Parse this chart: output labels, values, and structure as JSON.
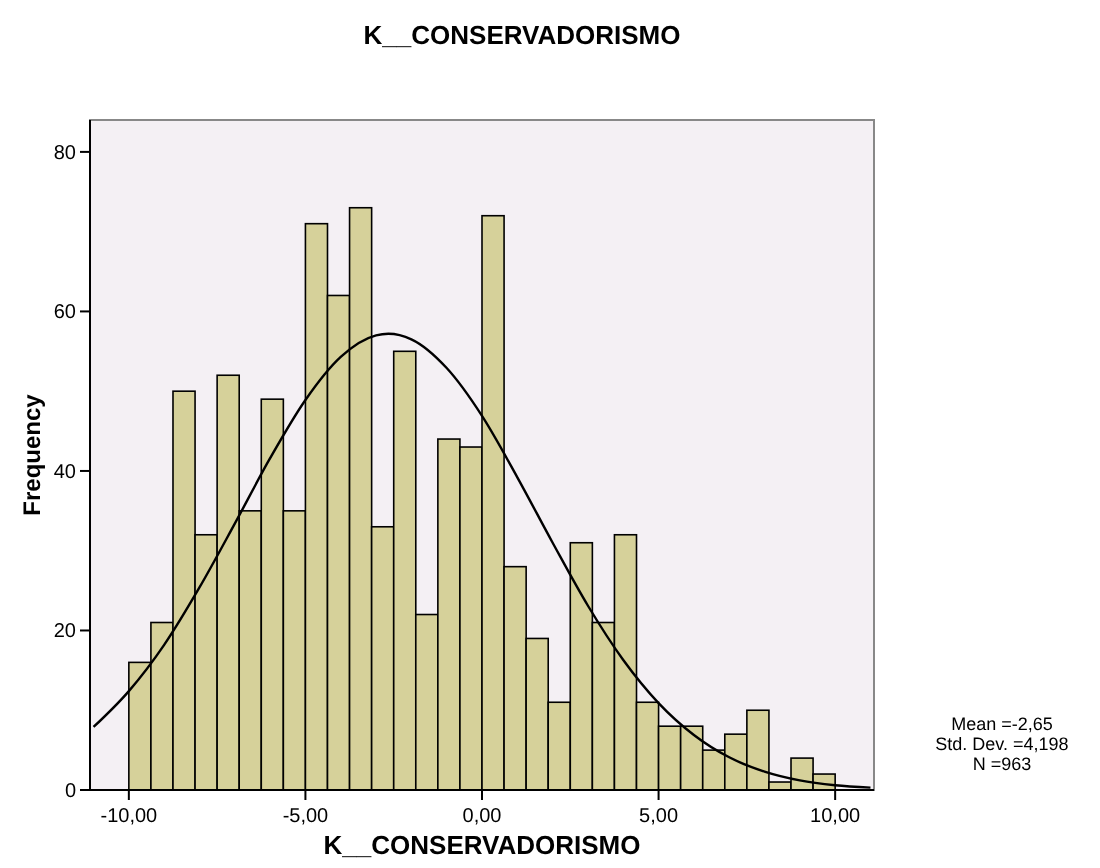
{
  "chart_data": {
    "type": "histogram",
    "title": "K__CONSERVADORISMO",
    "xlabel": "K__CONSERVADORISMO",
    "ylabel": "Frequency",
    "bins": [
      -10,
      -9.375,
      -8.75,
      -8.125,
      -7.5,
      -6.875,
      -6.25,
      -5.625,
      -5,
      -4.375,
      -3.75,
      -3.125,
      -2.5,
      -1.875,
      -1.25,
      -0.625,
      0,
      0.625,
      1.25,
      1.875,
      2.5,
      3.125,
      3.75,
      4.375,
      5,
      5.625,
      6.25,
      6.875,
      7.5,
      8.125,
      8.75,
      9.375,
      10
    ],
    "values": [
      16,
      21,
      50,
      32,
      52,
      35,
      49,
      35,
      71,
      62,
      73,
      33,
      55,
      22,
      44,
      43,
      72,
      28,
      19,
      11,
      31,
      21,
      32,
      11,
      8,
      8,
      5,
      7,
      10,
      1,
      4,
      2
    ],
    "color": "#d6d19a",
    "series": [
      {
        "type": "line",
        "color": "#000000",
        "x": [
          -11,
          -10,
          -9,
          -8,
          -7,
          -6,
          -5,
          -4,
          -3,
          -2.65,
          -2,
          -1,
          0,
          1,
          2,
          3,
          4,
          5,
          6,
          7,
          8,
          9,
          10,
          11
        ],
        "values": [
          7.9,
          12.4,
          18.2,
          25.4,
          33.4,
          41.6,
          48.9,
          54.3,
          57,
          57.2,
          56.5,
          52.9,
          46.9,
          39.2,
          31,
          23.1,
          16.3,
          10.9,
          6.9,
          4.1,
          2.3,
          1.2,
          0.6,
          0.3
        ]
      }
    ],
    "xlim": [
      -11.1,
      11.1
    ],
    "ylim": [
      0,
      84
    ],
    "xticks": [
      {
        "value": -10,
        "label": "-10,00"
      },
      {
        "value": -5,
        "label": "-5,00"
      },
      {
        "value": 0,
        "label": "0,00"
      },
      {
        "value": 5,
        "label": "5,00"
      },
      {
        "value": 10,
        "label": "10,00"
      }
    ],
    "yticks": [
      0,
      20,
      40,
      60,
      80
    ],
    "annotations": [
      "Mean =-2,65",
      "Std. Dev. =4,198",
      "N =963"
    ]
  }
}
